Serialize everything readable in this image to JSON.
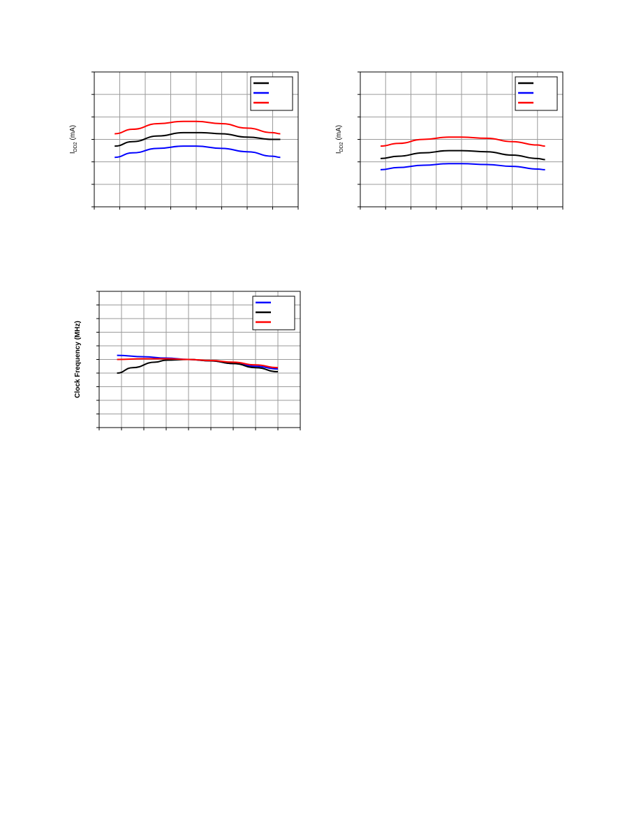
{
  "chart_data": [
    {
      "type": "line",
      "ylabel": "I",
      "ylabel_sub": "DD2",
      "ylabel_unit": " (mA)",
      "xlim": [
        0,
        8
      ],
      "ylim": [
        0,
        6
      ],
      "grid": true,
      "legend": "top-right",
      "series": [
        {
          "color": "#000000",
          "x": [
            0.8,
            1.5,
            2.5,
            3.5,
            4.2,
            5.0,
            6.0,
            7.0,
            7.3
          ],
          "y": [
            2.7,
            2.9,
            3.15,
            3.3,
            3.3,
            3.25,
            3.1,
            3.0,
            3.0
          ]
        },
        {
          "color": "#0000ff",
          "x": [
            0.8,
            1.5,
            2.5,
            3.5,
            4.0,
            5.0,
            6.0,
            7.0,
            7.3
          ],
          "y": [
            2.2,
            2.4,
            2.6,
            2.7,
            2.7,
            2.6,
            2.45,
            2.25,
            2.2
          ]
        },
        {
          "color": "#ff0000",
          "x": [
            0.8,
            1.5,
            2.5,
            3.5,
            4.0,
            5.0,
            6.0,
            7.0,
            7.3
          ],
          "y": [
            3.25,
            3.45,
            3.7,
            3.8,
            3.8,
            3.7,
            3.5,
            3.3,
            3.25
          ]
        }
      ]
    },
    {
      "type": "line",
      "ylabel": "I",
      "ylabel_sub": "DD2",
      "ylabel_unit": " (mA)",
      "xlim": [
        0,
        8
      ],
      "ylim": [
        0,
        6
      ],
      "grid": true,
      "legend": "top-right",
      "series": [
        {
          "color": "#000000",
          "x": [
            0.8,
            1.5,
            2.5,
            3.5,
            4.0,
            5.0,
            6.0,
            7.0,
            7.3
          ],
          "y": [
            2.15,
            2.25,
            2.4,
            2.5,
            2.5,
            2.45,
            2.3,
            2.15,
            2.1
          ]
        },
        {
          "color": "#0000ff",
          "x": [
            0.8,
            1.5,
            2.5,
            3.5,
            4.0,
            5.0,
            6.0,
            7.0,
            7.3
          ],
          "y": [
            1.65,
            1.75,
            1.85,
            1.92,
            1.92,
            1.88,
            1.8,
            1.68,
            1.65
          ]
        },
        {
          "color": "#ff0000",
          "x": [
            0.8,
            1.5,
            2.5,
            3.5,
            4.0,
            5.0,
            6.0,
            7.0,
            7.3
          ],
          "y": [
            2.7,
            2.82,
            3.0,
            3.1,
            3.1,
            3.05,
            2.9,
            2.75,
            2.7
          ]
        }
      ]
    },
    {
      "type": "line",
      "ylabel": "Clock Frequency (MHz)",
      "xlim": [
        0,
        9
      ],
      "ylim": [
        0,
        10
      ],
      "grid": true,
      "legend": "top-right",
      "series": [
        {
          "color": "#0000ff",
          "x": [
            0.8,
            2.0,
            3.0,
            4.0,
            5.0,
            6.0,
            7.0,
            8.0
          ],
          "y": [
            5.3,
            5.2,
            5.1,
            5.0,
            4.9,
            4.7,
            4.5,
            4.3
          ]
        },
        {
          "color": "#000000",
          "x": [
            0.8,
            1.5,
            2.5,
            3.0,
            4.0,
            5.0,
            6.0,
            7.0,
            8.0
          ],
          "y": [
            4.0,
            4.4,
            4.8,
            4.95,
            5.0,
            4.9,
            4.7,
            4.4,
            4.1
          ]
        },
        {
          "color": "#ff0000",
          "x": [
            0.8,
            2.0,
            3.0,
            4.0,
            5.0,
            6.0,
            7.0,
            8.0
          ],
          "y": [
            5.0,
            5.05,
            5.05,
            5.0,
            4.92,
            4.8,
            4.6,
            4.4
          ]
        }
      ]
    }
  ]
}
